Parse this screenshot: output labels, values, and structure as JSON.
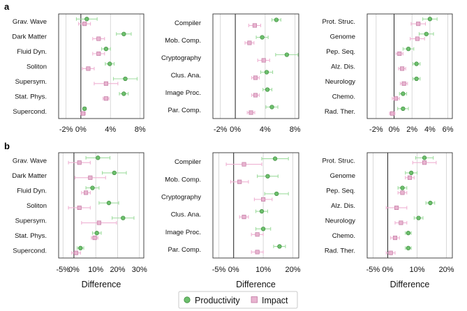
{
  "figure": {
    "panel_letters": [
      "a",
      "b"
    ],
    "legend": {
      "productivity": "Productivity",
      "impact": "Impact"
    },
    "colors": {
      "productivity_fill": "#6dbf6d",
      "productivity_edge": "#3e8e3e",
      "productivity_err": "#9fdc9f",
      "impact_fill": "#e8b4d0",
      "impact_edge": "#c27aa3",
      "impact_err": "#efb2d3",
      "grid": "#cfcfcf",
      "zero": "#333333"
    }
  },
  "chart_data": [
    {
      "type": "scatter",
      "panel": "a",
      "title": "",
      "xlabel": "",
      "xlim": [
        -3,
        8.5
      ],
      "xticks": [
        -2,
        0,
        4,
        8
      ],
      "xticklabels": [
        "-2%",
        "0%",
        "4%",
        "8%"
      ],
      "categories": [
        "Grav. Wave",
        "Dark Matter",
        "Fluid Dyn.",
        "Soliton",
        "Supersym.",
        "Stat. Phys.",
        "Supercond."
      ],
      "series": [
        {
          "name": "Productivity",
          "values": [
            0.8,
            5.8,
            3.4,
            3.9,
            6.0,
            5.8,
            0.5
          ],
          "err": [
            1.4,
            1.0,
            0.6,
            0.6,
            1.6,
            0.6,
            0.2
          ]
        },
        {
          "name": "Impact",
          "values": [
            0.5,
            2.4,
            2.4,
            1.0,
            3.4,
            3.4,
            0.3
          ],
          "err": [
            0.8,
            0.8,
            0.8,
            0.8,
            1.6,
            0.4,
            0.3
          ]
        }
      ]
    },
    {
      "type": "scatter",
      "panel": "a",
      "title": "",
      "xlabel": "",
      "xlim": [
        -3,
        8.5
      ],
      "xticks": [
        -2,
        0,
        4,
        8
      ],
      "xticklabels": [
        "-2%",
        "0%",
        "4%",
        "8%"
      ],
      "categories": [
        "Compiler",
        "Mob. Comp.",
        "Cryptography",
        "Clus. Ana.",
        "Image Proc.",
        "Par. Comp."
      ],
      "series": [
        {
          "name": "Productivity",
          "values": [
            5.5,
            3.6,
            6.9,
            4.2,
            4.3,
            4.9
          ],
          "err": [
            0.6,
            0.8,
            1.5,
            0.8,
            0.6,
            0.8
          ]
        },
        {
          "name": "Impact",
          "values": [
            2.6,
            1.9,
            3.8,
            2.7,
            2.7,
            2.1
          ],
          "err": [
            0.8,
            0.6,
            0.8,
            0.5,
            0.5,
            0.5
          ]
        }
      ]
    },
    {
      "type": "scatter",
      "panel": "a",
      "title": "",
      "xlabel": "",
      "xlim": [
        -3,
        6.5
      ],
      "xticks": [
        -2,
        0,
        2,
        4,
        6
      ],
      "xticklabels": [
        "-2%",
        "0%",
        "2%",
        "4%",
        "6%"
      ],
      "categories": [
        "Prot. Struc.",
        "Genome",
        "Pep. Seq.",
        "Alz. Dis.",
        "Neurology",
        "Chemo.",
        "Rad. Ther."
      ],
      "series": [
        {
          "name": "Productivity",
          "values": [
            4.0,
            3.6,
            1.6,
            2.5,
            2.5,
            1.0,
            1.0
          ],
          "err": [
            0.8,
            0.8,
            0.6,
            0.4,
            0.4,
            0.4,
            0.6
          ]
        },
        {
          "name": "Impact",
          "values": [
            2.7,
            2.6,
            0.6,
            0.9,
            1.1,
            0.2,
            -0.2
          ],
          "err": [
            0.8,
            0.8,
            0.4,
            0.4,
            0.4,
            0.4,
            0.3
          ]
        }
      ]
    },
    {
      "type": "scatter",
      "panel": "b",
      "title": "",
      "xlabel": "Difference",
      "xlim": [
        -7,
        32
      ],
      "xticks": [
        -5,
        0,
        10,
        20,
        30
      ],
      "xticklabels": [
        "-5%",
        "0%",
        "10%",
        "20%",
        "30%"
      ],
      "categories": [
        "Grav. Wave",
        "Dark Matter",
        "Fluid Dyn.",
        "Soliton",
        "Supersym.",
        "Stat. Phys.",
        "Supercond."
      ],
      "series": [
        {
          "name": "Productivity",
          "values": [
            11.0,
            18.5,
            8.5,
            16.0,
            22.5,
            10.5,
            3.0
          ],
          "err": [
            5.5,
            5.5,
            3.0,
            4.5,
            5.0,
            2.0,
            1.5
          ]
        },
        {
          "name": "Impact",
          "values": [
            2.5,
            7.5,
            5.5,
            2.5,
            11.5,
            9.5,
            1.0
          ],
          "err": [
            5.0,
            7.0,
            2.0,
            5.0,
            8.0,
            1.5,
            2.0
          ]
        }
      ]
    },
    {
      "type": "scatter",
      "panel": "b",
      "title": "",
      "xlabel": "Difference",
      "xlim": [
        -7,
        22
      ],
      "xticks": [
        -5,
        0,
        10,
        20
      ],
      "xticklabels": [
        "-5%",
        "0%",
        "10%",
        "20%"
      ],
      "categories": [
        "Compiler",
        "Mob. Comp.",
        "Cryptography",
        "Clus. Ana.",
        "Image Proc.",
        "Par. Comp."
      ],
      "series": [
        {
          "name": "Productivity",
          "values": [
            14.0,
            11.5,
            14.5,
            9.5,
            10.0,
            15.5
          ],
          "err": [
            4.5,
            3.5,
            4.0,
            2.0,
            2.5,
            2.0
          ]
        },
        {
          "name": "Impact",
          "values": [
            3.5,
            2.0,
            10.0,
            3.5,
            8.0,
            8.0
          ],
          "err": [
            6.0,
            3.0,
            3.0,
            1.5,
            2.0,
            2.0
          ]
        }
      ]
    },
    {
      "type": "scatter",
      "panel": "b",
      "title": "",
      "xlabel": "Difference",
      "xlim": [
        -7,
        22
      ],
      "xticks": [
        -5,
        0,
        10,
        20
      ],
      "xticklabels": [
        "-5%",
        "0%",
        "10%",
        "20%"
      ],
      "categories": [
        "Prot. Struc.",
        "Genome",
        "Pep. Seq.",
        "Alz. Dis.",
        "Neurology",
        "Chemo.",
        "Rad. Ther."
      ],
      "series": [
        {
          "name": "Productivity",
          "values": [
            12.5,
            8.0,
            5.0,
            14.5,
            10.5,
            7.0,
            7.0
          ],
          "err": [
            3.0,
            2.0,
            1.5,
            1.5,
            1.5,
            1.0,
            1.0
          ]
        },
        {
          "name": "Impact",
          "values": [
            12.5,
            7.5,
            5.0,
            3.0,
            4.5,
            2.5,
            1.0
          ],
          "err": [
            4.0,
            1.5,
            1.5,
            3.5,
            2.0,
            1.5,
            1.5
          ]
        }
      ]
    }
  ]
}
